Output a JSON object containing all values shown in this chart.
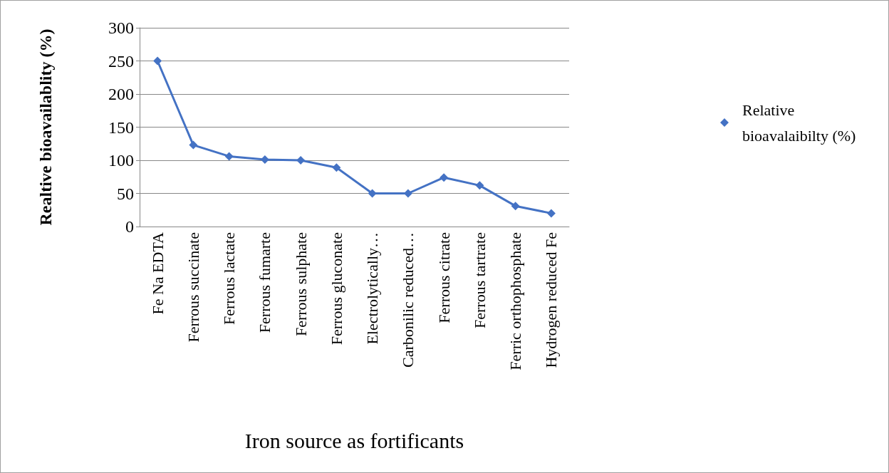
{
  "chart_data": {
    "type": "line",
    "xlabel": "Iron source as fortificants",
    "ylabel": "Realtive bioavailablity (%)",
    "categories": [
      "Fe Na EDTA",
      "Ferrous succinate",
      "Ferrous lactate",
      "Ferrous fumarte",
      "Ferrous sulphate",
      "Ferrous gluconate",
      "Electrolytically…",
      "Carbonilic reduced…",
      "Ferrous citrate",
      "Ferrous tartrate",
      "Ferric orthophosphate",
      "Hydrogen reduced Fe"
    ],
    "series": [
      {
        "name": "Relative bioavalaibilty (%)",
        "color": "#4472c4",
        "values": [
          250,
          123,
          106,
          101,
          100,
          89,
          50,
          50,
          74,
          62,
          31,
          20
        ]
      }
    ],
    "ylim": [
      0,
      300
    ],
    "yticks": [
      0,
      50,
      100,
      150,
      200,
      250,
      300
    ],
    "grid": "y",
    "legend": "right",
    "marker": "diamond",
    "line_style": "solid"
  }
}
